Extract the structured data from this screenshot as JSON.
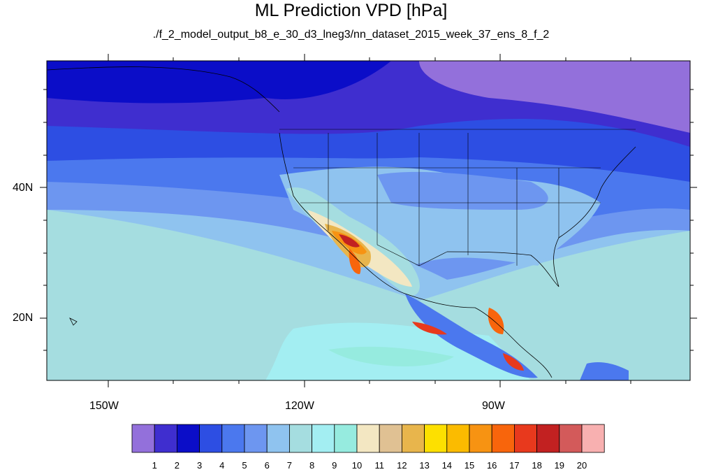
{
  "title": "ML Prediction VPD [hPa]",
  "subtitle": "./f_2_model_output_b8_e_30_d3_lneg3/nn_dataset_2015_week_37_ens_8_f_2",
  "map": {
    "projection": "cylindrical equidistant",
    "lon_range": [
      -160,
      -62
    ],
    "lat_range": [
      11,
      60
    ],
    "lon_ticks": [
      "150W",
      "120W",
      "90W"
    ],
    "lat_ticks": [
      "40N",
      "20N"
    ],
    "features": [
      "coastlines",
      "us-state-boundaries",
      "national-boundaries"
    ]
  },
  "colorbar": {
    "orientation": "horizontal",
    "colors": [
      "#9370db",
      "#3f2ecf",
      "#0b0dc8",
      "#2d4ee3",
      "#4b78ee",
      "#6d96f0",
      "#8fc3ef",
      "#a5dde0",
      "#a3eef2",
      "#96ebdf",
      "#f3e7c2",
      "#e0c193",
      "#e8b54c",
      "#fde000",
      "#fbbb00",
      "#f79312",
      "#f8650c",
      "#e8391d",
      "#c22121",
      "#d35a5a",
      "#f8b0b0"
    ],
    "labels": [
      "1",
      "2",
      "3",
      "4",
      "5",
      "6",
      "7",
      "8",
      "9",
      "10",
      "11",
      "12",
      "13",
      "14",
      "15",
      "16",
      "17",
      "18",
      "19",
      "20"
    ]
  }
}
